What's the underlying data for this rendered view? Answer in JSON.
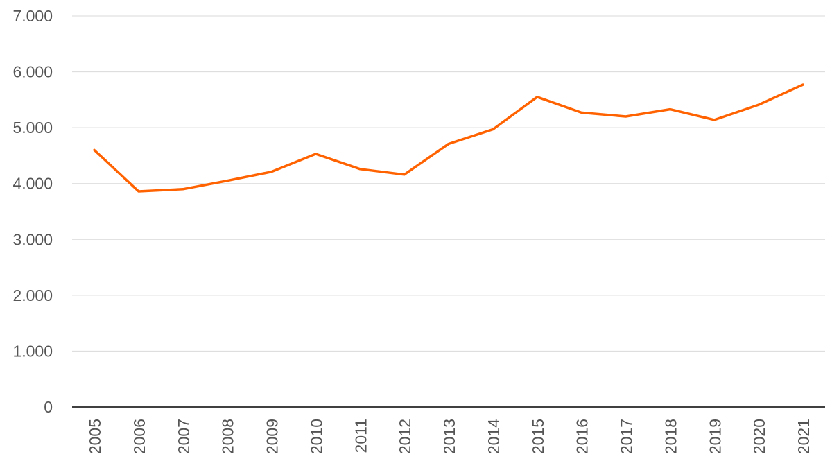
{
  "chart_data": {
    "type": "line",
    "title": "",
    "xlabel": "",
    "ylabel": "",
    "x": [
      "2005",
      "2006",
      "2007",
      "2008",
      "2009",
      "2010",
      "2011",
      "2012",
      "2013",
      "2014",
      "2015",
      "2016",
      "2017",
      "2018",
      "2019",
      "2020",
      "2021"
    ],
    "series": [
      {
        "values": [
          4600,
          3860,
          3900,
          4050,
          4210,
          4530,
          4260,
          4160,
          4710,
          4970,
          5550,
          5270,
          5200,
          5330,
          5140,
          5410,
          5770
        ],
        "color": "#ff6200"
      }
    ],
    "ylim": [
      0,
      7000
    ],
    "yticks": [
      0,
      1000,
      2000,
      3000,
      4000,
      5000,
      6000,
      7000
    ],
    "ytick_labels": [
      "0",
      "1.000",
      "2.000",
      "3.000",
      "4.000",
      "5.000",
      "6.000",
      "7.000"
    ],
    "grid": true,
    "legend": "none",
    "colors": {
      "grid": "#d9d9d9",
      "axis": "#000000",
      "text": "#555555"
    }
  }
}
